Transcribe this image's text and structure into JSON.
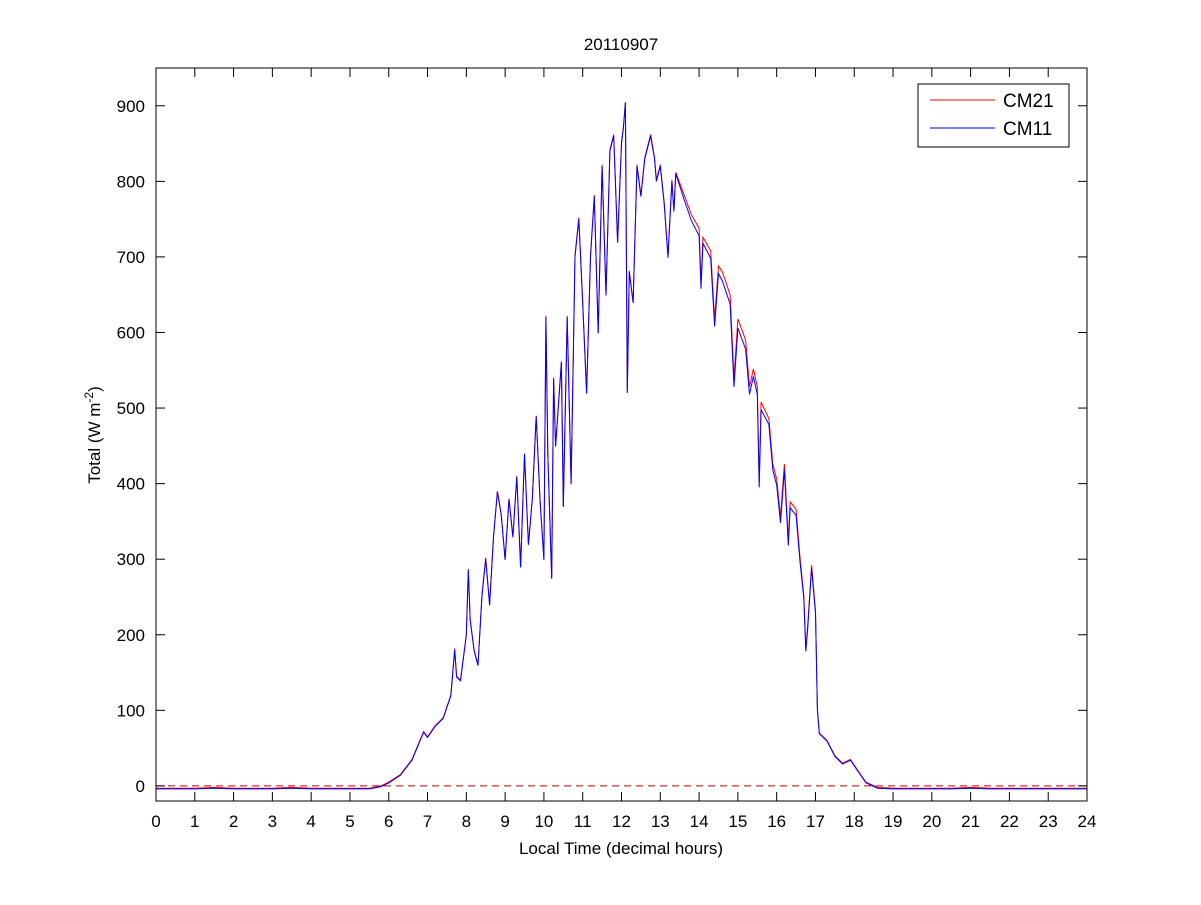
{
  "chart_data": {
    "type": "line",
    "title": "20110907",
    "xlabel": "Local Time (decimal hours)",
    "ylabel_main": "Total (W m",
    "ylabel_sup": "-2",
    "ylabel_close": ")",
    "xlim": [
      0,
      24
    ],
    "ylim": [
      -20,
      950
    ],
    "xticks": [
      "0",
      "1",
      "2",
      "3",
      "4",
      "5",
      "6",
      "7",
      "8",
      "9",
      "10",
      "11",
      "12",
      "13",
      "14",
      "15",
      "16",
      "17",
      "18",
      "19",
      "20",
      "21",
      "22",
      "23",
      "24"
    ],
    "yticks": [
      "0",
      "100",
      "200",
      "300",
      "400",
      "500",
      "600",
      "700",
      "800",
      "900"
    ],
    "grid": false,
    "legend_position": "top-right",
    "reference_line": {
      "y": 0,
      "style": "dashed",
      "color": "#c00000"
    },
    "x": [
      0,
      0.5,
      1,
      1.5,
      2,
      2.5,
      3,
      3.5,
      4,
      4.5,
      5,
      5.5,
      5.8,
      6.0,
      6.3,
      6.6,
      6.8,
      6.9,
      7.0,
      7.2,
      7.4,
      7.6,
      7.7,
      7.75,
      7.85,
      8.0,
      8.05,
      8.1,
      8.2,
      8.3,
      8.4,
      8.5,
      8.6,
      8.7,
      8.8,
      8.9,
      9.0,
      9.1,
      9.2,
      9.3,
      9.4,
      9.5,
      9.6,
      9.7,
      9.8,
      9.9,
      10.0,
      10.05,
      10.1,
      10.2,
      10.25,
      10.3,
      10.45,
      10.5,
      10.6,
      10.7,
      10.8,
      10.9,
      11.0,
      11.1,
      11.2,
      11.3,
      11.4,
      11.5,
      11.6,
      11.7,
      11.8,
      11.9,
      12.0,
      12.05,
      12.1,
      12.15,
      12.2,
      12.3,
      12.4,
      12.5,
      12.6,
      12.7,
      12.75,
      12.85,
      12.9,
      13.0,
      13.1,
      13.2,
      13.3,
      13.35,
      13.4,
      13.6,
      13.8,
      14.0,
      14.05,
      14.1,
      14.3,
      14.4,
      14.5,
      14.6,
      14.8,
      14.9,
      15.0,
      15.2,
      15.3,
      15.4,
      15.5,
      15.55,
      15.6,
      15.8,
      15.9,
      16.0,
      16.1,
      16.2,
      16.3,
      16.35,
      16.5,
      16.6,
      16.7,
      16.75,
      16.8,
      16.9,
      17.0,
      17.05,
      17.1,
      17.3,
      17.5,
      17.7,
      17.9,
      18.1,
      18.3,
      18.6,
      19,
      19.5,
      20,
      20.5,
      21,
      21.5,
      22,
      22.5,
      23,
      23.5,
      24
    ],
    "series": [
      {
        "name": "CM21",
        "color": "#ff0000",
        "values": [
          -3,
          -3,
          -3,
          -2,
          -3,
          -3,
          -3,
          -2,
          -3,
          -3,
          -3,
          -3,
          0,
          5,
          15,
          35,
          60,
          72,
          65,
          80,
          90,
          120,
          182,
          145,
          140,
          200,
          287,
          220,
          180,
          160,
          252,
          302,
          240,
          330,
          390,
          360,
          300,
          380,
          330,
          410,
          290,
          440,
          320,
          380,
          490,
          380,
          300,
          622,
          440,
          275,
          540,
          450,
          562,
          370,
          622,
          400,
          702,
          752,
          640,
          520,
          702,
          782,
          600,
          822,
          650,
          842,
          862,
          720,
          852,
          872,
          905,
          522,
          682,
          640,
          822,
          782,
          832,
          852,
          862,
          832,
          802,
          822,
          772,
          702,
          802,
          762,
          812,
          784,
          756,
          738,
          668,
          726,
          708,
          618,
          688,
          680,
          650,
          540,
          618,
          590,
          528,
          552,
          528,
          402,
          508,
          486,
          426,
          406,
          356,
          426,
          326,
          376,
          366,
          304,
          252,
          182,
          212,
          292,
          232,
          102,
          70,
          60,
          40,
          30,
          35,
          20,
          5,
          -2,
          -3,
          -3,
          -3,
          -3,
          -2,
          -3,
          -3,
          -3,
          -3,
          -3,
          -3
        ]
      },
      {
        "name": "CM11",
        "color": "#0000ff",
        "values": [
          -4,
          -4,
          -4,
          -3,
          -4,
          -4,
          -4,
          -3,
          -4,
          -4,
          -4,
          -4,
          -1,
          4,
          14,
          34,
          59,
          71,
          64,
          79,
          89,
          119,
          180,
          144,
          139,
          199,
          285,
          219,
          179,
          159,
          250,
          300,
          239,
          329,
          389,
          359,
          299,
          379,
          329,
          409,
          289,
          439,
          319,
          379,
          489,
          379,
          299,
          620,
          439,
          274,
          539,
          449,
          560,
          369,
          620,
          399,
          700,
          750,
          639,
          519,
          700,
          780,
          599,
          820,
          649,
          840,
          860,
          719,
          850,
          870,
          904,
          520,
          680,
          639,
          820,
          780,
          830,
          850,
          860,
          830,
          800,
          820,
          770,
          699,
          800,
          760,
          810,
          778,
          748,
          728,
          658,
          718,
          698,
          608,
          678,
          668,
          638,
          528,
          606,
          578,
          518,
          542,
          518,
          395,
          498,
          478,
          418,
          398,
          348,
          418,
          318,
          368,
          358,
          298,
          248,
          178,
          208,
          288,
          228,
          100,
          69,
          59,
          39,
          29,
          34,
          19,
          4,
          -3,
          -4,
          -4,
          -4,
          -4,
          -3,
          -4,
          -4,
          -4,
          -4,
          -4,
          -4
        ]
      }
    ]
  }
}
